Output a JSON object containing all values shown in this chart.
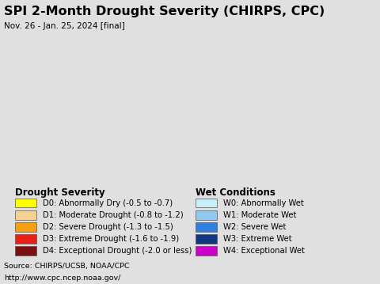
{
  "title": "SPI 2-Month Drought Severity (CHIRPS, CPC)",
  "subtitle": "Nov. 26 - Jan. 25, 2024 [final]",
  "map_bg_color": "#b8ecf4",
  "legend_bg_color": "#e0e0e0",
  "body_bg_color": "#e0e0e0",
  "source_text1": "Source: CHIRPS/UCSB, NOAA/CPC",
  "source_text2": "http://www.cpc.ncep.noaa.gov/",
  "drought_title": "Drought Severity",
  "wet_title": "Wet Conditions",
  "drought_labels": [
    "D0: Abnormally Dry (-0.5 to -0.7)",
    "D1: Moderate Drought (-0.8 to -1.2)",
    "D2: Severe Drought (-1.3 to -1.5)",
    "D3: Extreme Drought (-1.6 to -1.9)",
    "D4: Exceptional Drought (-2.0 or less)"
  ],
  "drought_colors": [
    "#ffff00",
    "#f5d090",
    "#f5a010",
    "#e82018",
    "#7b1010"
  ],
  "wet_labels": [
    "W0: Abnormally Wet",
    "W1: Moderate Wet",
    "W2: Severe Wet",
    "W3: Extreme Wet",
    "W4: Exceptional Wet"
  ],
  "wet_colors": [
    "#c8f0f8",
    "#90c8f0",
    "#3080e0",
    "#103880",
    "#cc00cc"
  ],
  "title_fontsize": 11.5,
  "subtitle_fontsize": 7.5,
  "legend_title_fontsize": 8.5,
  "legend_label_fontsize": 7.2,
  "source_fontsize": 6.8
}
